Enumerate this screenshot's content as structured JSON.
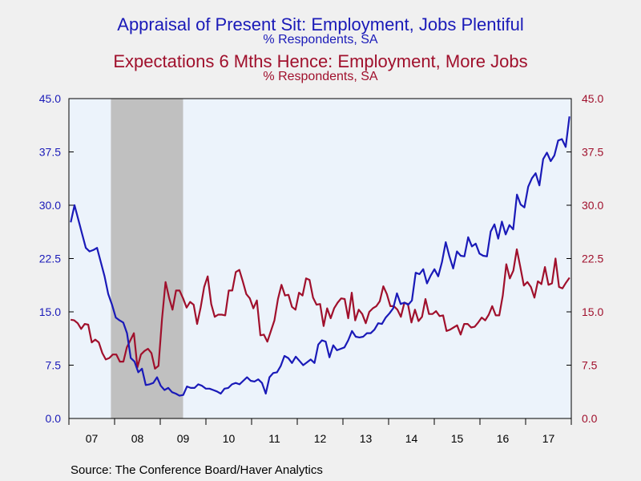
{
  "header": {
    "title1": "Appraisal of Present Sit: Employment, Jobs Plentiful",
    "subtitle1": "% Respondents, SA",
    "title2": "Expectations 6 Mths Hence: Employment, More Jobs",
    "subtitle2": "% Respondents, SA"
  },
  "footer": {
    "source": "Source:  The Conference Board/Haver Analytics"
  },
  "colors": {
    "series1": "#1a1ab8",
    "series2": "#a0102c",
    "plot_bg": "#ecf3fb",
    "recession": "#c0c0c0",
    "page_bg": "#f0f0f0"
  },
  "chart_data": {
    "type": "line",
    "x_start": 2007.0,
    "x_end": 2018.0,
    "ylim": [
      0,
      45
    ],
    "left_ticks": [
      "0.0",
      "7.5",
      "15.0",
      "22.5",
      "30.0",
      "37.5",
      "45.0"
    ],
    "right_ticks": [
      "0.0",
      "7.5",
      "15.0",
      "22.5",
      "30.0",
      "37.5",
      "45.0"
    ],
    "x_ticks": [
      "07",
      "08",
      "09",
      "10",
      "11",
      "12",
      "13",
      "14",
      "15",
      "16",
      "17"
    ],
    "recession": [
      2007.92,
      2009.5
    ],
    "series": [
      {
        "values": [
          27.6,
          30,
          28,
          26,
          24,
          23.5,
          23.7,
          24,
          22,
          20,
          17.5,
          16,
          14.2,
          13.8,
          13.5,
          12,
          8.5,
          8,
          6.5,
          7,
          4.7,
          4.8,
          5,
          5.8,
          4.6,
          4,
          4.3,
          3.7,
          3.5,
          3.2,
          3.3,
          4.5,
          4.3,
          4.3,
          4.8,
          4.6,
          4.2,
          4.2,
          4,
          3.8,
          3.5,
          4.2,
          4.3,
          4.8,
          5,
          4.8,
          5.3,
          5.8,
          5.3,
          5.2,
          5.5,
          5,
          3.5,
          5.8,
          6.4,
          6.5,
          7.4,
          8.8,
          8.5,
          7.8,
          8.7,
          8.1,
          7.5,
          7.9,
          8.3,
          7.8,
          10.4,
          11,
          10.8,
          8.6,
          10.3,
          9.6,
          9.8,
          10,
          11,
          12.3,
          11.5,
          11.4,
          11.5,
          12,
          12,
          12.5,
          13.4,
          13.3,
          14.2,
          14.8,
          15.5,
          17.6,
          16.1,
          16.3,
          16,
          16.6,
          20.5,
          20.3,
          21,
          19,
          20.1,
          21,
          20,
          22,
          24.8,
          22.8,
          21.1,
          23.5,
          22.9,
          22.8,
          25.5,
          24.2,
          24.6,
          23.2,
          22.9,
          22.8,
          26.3,
          27.3,
          25.3,
          27.7,
          25.9,
          27.2,
          26.6,
          31.5,
          30.1,
          29.7,
          32.6,
          33.8,
          34.5,
          32.8,
          36.5,
          37.4,
          36.2,
          37,
          39.1,
          39.3,
          38.2,
          42.5
        ]
      },
      {
        "values": [
          13.9,
          13.8,
          13.4,
          12.6,
          13.3,
          13.2,
          10.7,
          11.1,
          10.7,
          9.2,
          8.3,
          8.5,
          9,
          9,
          8,
          8,
          10,
          11,
          12,
          7.2,
          9,
          9.5,
          9.8,
          9.2,
          7,
          7.4,
          14,
          19.2,
          17,
          15.3,
          18,
          18,
          16.9,
          15.6,
          16.4,
          16,
          13.3,
          15.6,
          18.5,
          20,
          16.1,
          14.3,
          14.6,
          14.6,
          14.5,
          18,
          18,
          20.6,
          20.9,
          19.3,
          17.5,
          16.9,
          15.5,
          16.6,
          11.7,
          11.8,
          10.8,
          12.3,
          13.8,
          16.8,
          18.8,
          17.3,
          17.4,
          15.7,
          15.3,
          17.7,
          17.3,
          19.7,
          19.5,
          17,
          16,
          16.1,
          13,
          15.5,
          14.1,
          15.5,
          16.3,
          16.9,
          16.8,
          14.1,
          17.7,
          13.8,
          15.3,
          14.7,
          13.4,
          15,
          15.5,
          15.8,
          16.5,
          18.6,
          17.5,
          15.8,
          15.8,
          15.3,
          14.3,
          16.3,
          16.1,
          13.5,
          15.3,
          13.7,
          14.3,
          16.8,
          14.7,
          14.7,
          15.1,
          14.4,
          14.5,
          12.3,
          12.5,
          12.8,
          13.1,
          11.8,
          13.3,
          13.3,
          12.8,
          12.9,
          13.5,
          14.2,
          13.8,
          14.6,
          15.8,
          14.5,
          14.5,
          17.3,
          21.7,
          19.7,
          20.8,
          23.8,
          21.3,
          18.7,
          19.2,
          18.5,
          17,
          19.3,
          18.9,
          21.3,
          18.8,
          19,
          22.5,
          18.5,
          18.3,
          19.1,
          19.8
        ]
      }
    ]
  }
}
